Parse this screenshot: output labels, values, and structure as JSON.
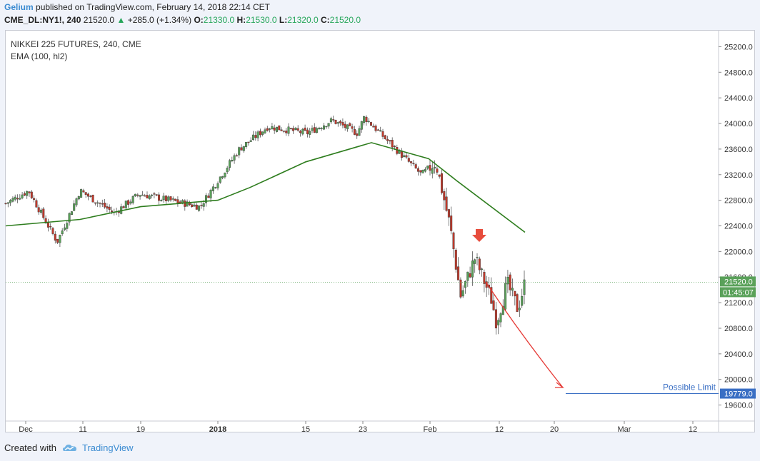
{
  "header": {
    "author": "Gelium",
    "published": "published on TradingView.com, February 14, 2018 22:14 CET",
    "symbol": "CME_DL:NY1!, 240",
    "last": "21520.0",
    "change": "+285.0 (+1.34%)",
    "o_label": "O:",
    "o": "21330.0",
    "h_label": "H:",
    "h": "21530.0",
    "l_label": "L:",
    "l": "21320.0",
    "c_label": "C:",
    "c": "21520.0"
  },
  "legend": {
    "title": "NIKKEI 225 FUTURES, 240, CME",
    "indicator": "EMA (100, hl2)"
  },
  "footer": {
    "created": "Created with",
    "brand": "TradingView"
  },
  "colors": {
    "up": "#5aa15a",
    "down": "#c0392b",
    "ema": "#2e7d1e",
    "arrow": "#e74c3c",
    "limit": "#3a6fc4",
    "price_tag": "#5aa15a"
  },
  "chart_data": {
    "type": "candlestick",
    "title": "NIKKEI 225 FUTURES, 240, CME",
    "ylim": [
      19350,
      25450
    ],
    "y_ticks": [
      19600,
      20000,
      20400,
      20800,
      21200,
      21600,
      22000,
      22400,
      22800,
      23200,
      23600,
      24000,
      24400,
      24800,
      25200
    ],
    "x_ticks": [
      "Dec",
      "11",
      "19",
      "2018",
      "15",
      "23",
      "Feb",
      "12",
      "20",
      "Mar",
      "12"
    ],
    "last_price": "21520.0",
    "countdown": "01:45:07",
    "limit_level": "19779.0",
    "limit_label": "Possible Limit",
    "close_path": [
      {
        "date": "Dec",
        "close": 22750
      },
      {
        "date": "Dec",
        "close": 22950
      },
      {
        "date": "11",
        "close": 22150
      },
      {
        "date": "11",
        "close": 22950
      },
      {
        "date": "19",
        "close": 22600
      },
      {
        "date": "19",
        "close": 22900
      },
      {
        "date": "2018",
        "close": 22700
      },
      {
        "date": "2018",
        "close": 23600
      },
      {
        "date": "2018",
        "close": 23950
      },
      {
        "date": "15",
        "close": 23850
      },
      {
        "date": "15",
        "close": 24050
      },
      {
        "date": "23",
        "close": 23850
      },
      {
        "date": "23",
        "close": 24100
      },
      {
        "date": "23",
        "close": 23700
      },
      {
        "date": "Feb",
        "close": 23200
      },
      {
        "date": "Feb",
        "close": 23400
      },
      {
        "date": "Feb",
        "close": 22400
      },
      {
        "date": "Feb",
        "close": 21300
      },
      {
        "date": "Feb",
        "close": 21900
      },
      {
        "date": "12",
        "close": 21250
      },
      {
        "date": "12",
        "close": 20900
      },
      {
        "date": "12",
        "close": 21500
      },
      {
        "date": "12",
        "close": 21100
      },
      {
        "date": "12",
        "close": 21520
      }
    ],
    "ema_path": [
      {
        "date": "Dec",
        "value": 22400
      },
      {
        "date": "11",
        "value": 22500
      },
      {
        "date": "19",
        "value": 22700
      },
      {
        "date": "2018",
        "value": 22800
      },
      {
        "date": "2018",
        "value": 23000
      },
      {
        "date": "15",
        "value": 23400
      },
      {
        "date": "23",
        "value": 23700
      },
      {
        "date": "Feb",
        "value": 23450
      },
      {
        "date": "Feb",
        "value": 23100
      },
      {
        "date": "12",
        "value": 22300
      }
    ]
  }
}
